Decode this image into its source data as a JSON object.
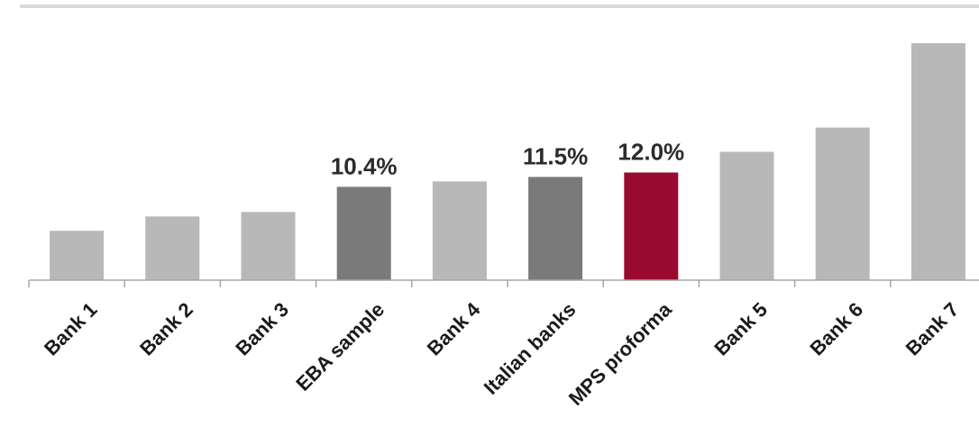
{
  "colors": {
    "regular": "#b8b8b8",
    "benchmark": "#7a7a7a",
    "highlight": "#9a0a2e",
    "axis": "#a6a6a6",
    "top_rule": "#d9d9d9"
  },
  "chart_data": {
    "type": "bar",
    "title": "",
    "xlabel": "",
    "ylabel": "",
    "ylim": [
      0,
      26.5
    ],
    "grid": false,
    "legend": "none",
    "categories": [
      "Bank 1",
      "Bank 2",
      "Bank 3",
      "EBA sample",
      "Bank 4",
      "Italian banks",
      "MPS proforma",
      "Bank 5",
      "Bank 6",
      "Bank 7"
    ],
    "values": [
      5.5,
      7.1,
      7.6,
      10.4,
      11.0,
      11.5,
      12.0,
      14.3,
      17.0,
      26.4
    ],
    "bar_styles": [
      "regular",
      "regular",
      "regular",
      "benchmark",
      "regular",
      "benchmark",
      "highlight",
      "regular",
      "regular",
      "regular"
    ],
    "data_labels": [
      "",
      "",
      "",
      "10.4%",
      "",
      "11.5%",
      "12.0%",
      "",
      "",
      ""
    ]
  }
}
